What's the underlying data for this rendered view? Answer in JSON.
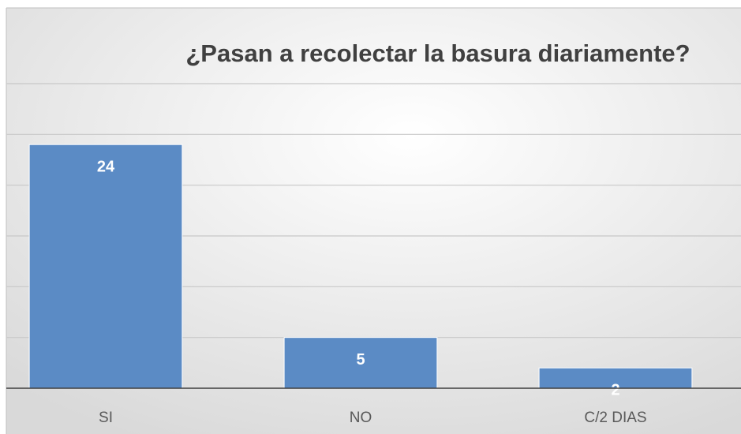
{
  "chart_data": {
    "type": "bar",
    "title": "¿Pasan a recolectar la basura diariamente?",
    "categories": [
      "SI",
      "NO",
      "C/2 DIAS"
    ],
    "values": [
      24,
      5,
      2
    ],
    "color": "#5b8bc5",
    "ylim": [
      0,
      30
    ],
    "yticks": [
      0,
      5,
      10,
      15,
      20,
      25,
      30
    ],
    "grid": true
  }
}
